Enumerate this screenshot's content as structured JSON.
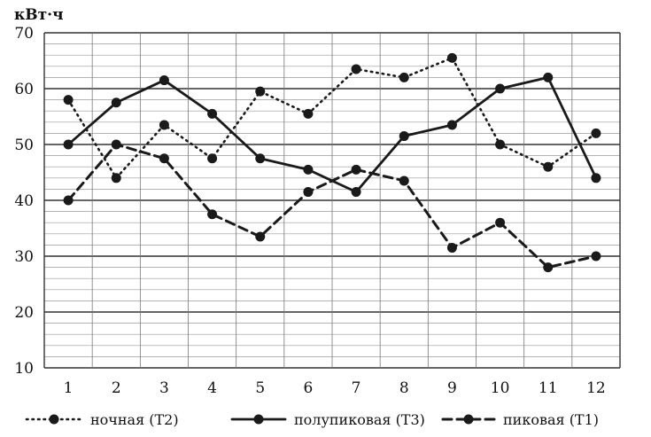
{
  "chart_data": {
    "type": "line",
    "ylabel": "кВт·ч",
    "x": [
      "1",
      "2",
      "3",
      "4",
      "5",
      "6",
      "7",
      "8",
      "9",
      "10",
      "11",
      "12"
    ],
    "ylim": [
      10,
      70
    ],
    "yticks": [
      10,
      20,
      30,
      40,
      50,
      60,
      70
    ],
    "minor_grid_step": 2,
    "grid": true,
    "legend_position": "bottom",
    "series": [
      {
        "name": "ночная (Т2)",
        "style": "dotted",
        "color": "#1a1a1a",
        "values": [
          58,
          44,
          53.5,
          47.5,
          59.5,
          55.5,
          63.5,
          62,
          65.5,
          50,
          46,
          52
        ]
      },
      {
        "name": "полупиковая (Т3)",
        "style": "solid",
        "color": "#1a1a1a",
        "values": [
          50,
          57.5,
          61.5,
          55.5,
          47.5,
          45.5,
          41.5,
          51.5,
          53.5,
          60,
          62,
          44
        ]
      },
      {
        "name": "пиковая (Т1)",
        "style": "dashed",
        "color": "#1a1a1a",
        "values": [
          40,
          50,
          47.5,
          37.5,
          33.5,
          41.5,
          45.5,
          43.5,
          31.5,
          36,
          28,
          30
        ]
      }
    ]
  }
}
